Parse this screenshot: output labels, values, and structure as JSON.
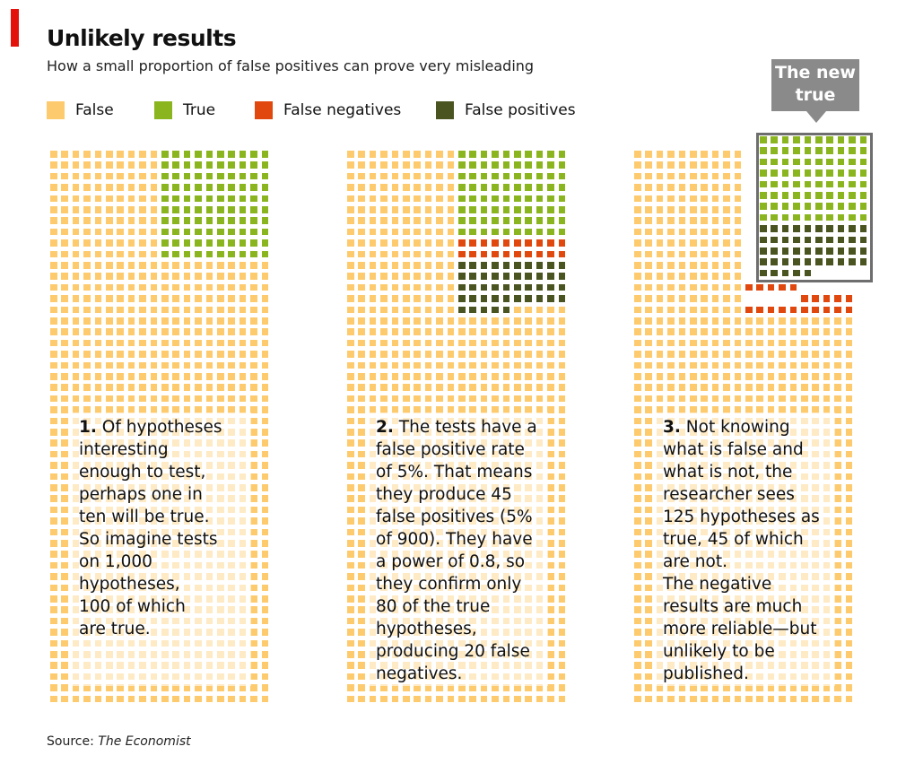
{
  "header": {
    "title": "Unlikely results",
    "subtitle": "How a small proportion of false positives can prove very misleading"
  },
  "legend": [
    {
      "label": "False",
      "color": "#fdcb6e"
    },
    {
      "label": "True",
      "color": "#8ab51f"
    },
    {
      "label": "False negatives",
      "color": "#e0480e"
    },
    {
      "label": "False positives",
      "color": "#4a5420"
    }
  ],
  "callout": {
    "line1": "The new",
    "line2": "true"
  },
  "panels": [
    {
      "number": "1.",
      "text": [
        "Of hypotheses",
        "interesting",
        "enough to test,",
        "perhaps one in",
        "ten will be true.",
        "So imagine tests",
        "on 1,000",
        "hypotheses,",
        "100 of which",
        "are true."
      ]
    },
    {
      "number": "2.",
      "text": [
        "The tests have a",
        "false positive rate",
        "of 5%. That means",
        "they produce 45",
        "false positives (5%",
        "of 900). They have",
        "a power of 0.8, so",
        "they confirm only",
        "80 of the true",
        "hypotheses,",
        "producing 20 false",
        "negatives."
      ]
    },
    {
      "number": "3.",
      "text": [
        "Not knowing",
        "what is false and",
        "what is not, the",
        "researcher sees",
        "125 hypotheses as",
        "true, 45 of which",
        "are not.",
        "The negative",
        "results are much",
        "more reliable—but",
        "unlikely to be",
        "published."
      ]
    }
  ],
  "source": {
    "prefix": "Source: ",
    "name": "The Economist"
  },
  "chart_data": [
    {
      "type": "waffle",
      "total": 1000,
      "series": [
        {
          "name": "True",
          "value": 100
        },
        {
          "name": "False",
          "value": 900
        }
      ]
    },
    {
      "type": "waffle",
      "total": 1000,
      "series": [
        {
          "name": "True",
          "value": 80
        },
        {
          "name": "False negatives",
          "value": 20
        },
        {
          "name": "False positives",
          "value": 45
        },
        {
          "name": "False",
          "value": 855
        }
      ]
    },
    {
      "type": "waffle",
      "total": 1000,
      "series": [
        {
          "name": "True",
          "value": 80
        },
        {
          "name": "False positives",
          "value": 45
        },
        {
          "name": "False negatives",
          "value": 20
        },
        {
          "name": "False",
          "value": 855
        }
      ]
    }
  ]
}
